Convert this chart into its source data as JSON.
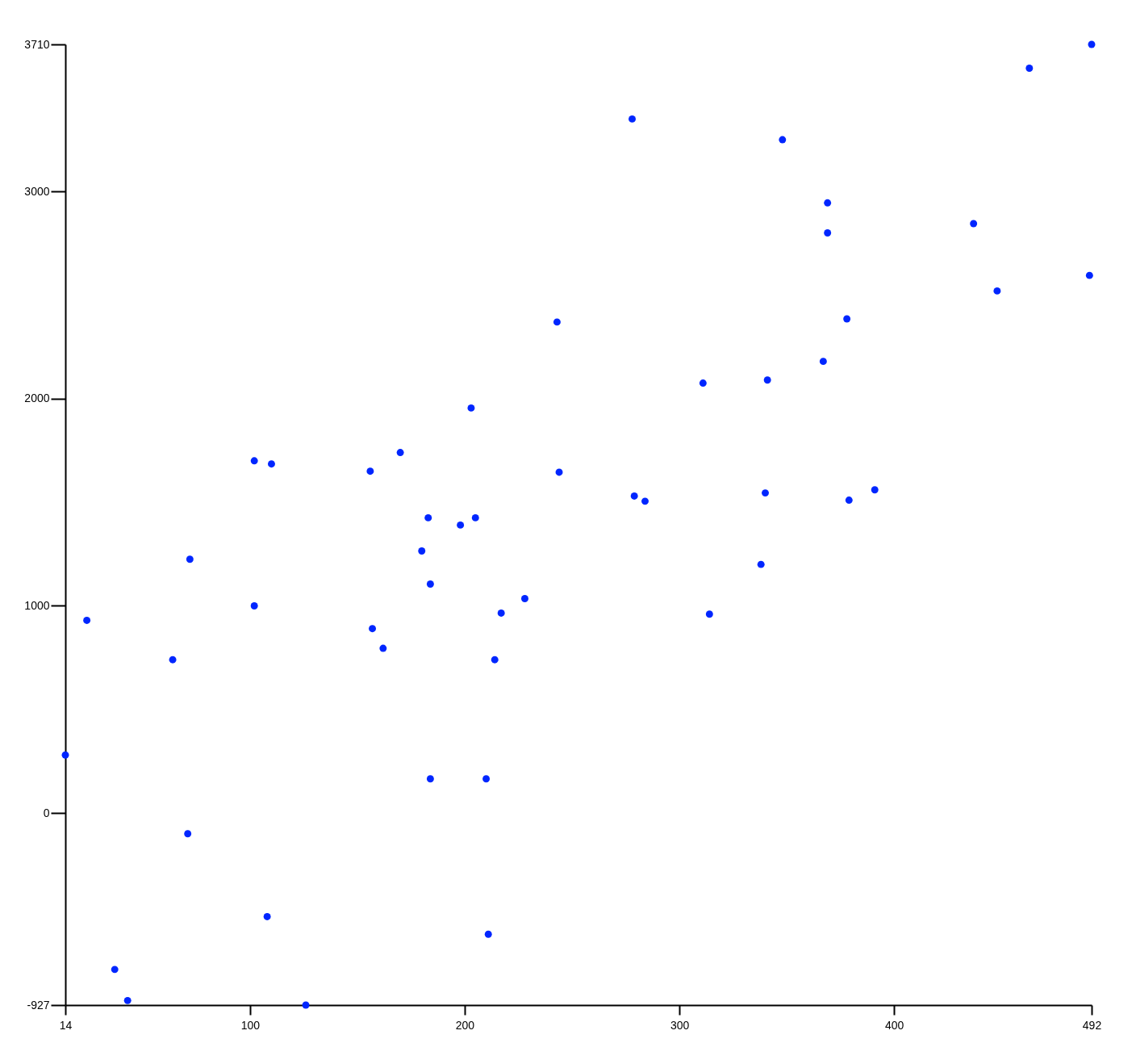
{
  "chart_data": {
    "type": "scatter",
    "x": [
      492,
      463,
      278,
      348,
      369,
      437,
      369,
      491,
      448,
      243,
      378,
      367,
      311,
      341,
      203,
      170,
      102,
      110,
      156,
      244,
      279,
      284,
      340,
      379,
      391,
      183,
      205,
      198,
      180,
      72,
      338,
      184,
      228,
      102,
      24,
      217,
      314,
      157,
      162,
      64,
      214,
      14,
      184,
      210,
      71,
      108,
      211,
      37,
      43,
      126
    ],
    "series": [
      {
        "color": "#0026ff",
        "values": [
          3710,
          3595,
          3350,
          3250,
          2945,
          2845,
          2800,
          2595,
          2520,
          2370,
          2385,
          2180,
          2075,
          2090,
          1955,
          1740,
          1700,
          1685,
          1650,
          1645,
          1530,
          1505,
          1545,
          1510,
          1560,
          1425,
          1425,
          1390,
          1265,
          1225,
          1200,
          1105,
          1035,
          1000,
          930,
          965,
          960,
          890,
          795,
          740,
          740,
          280,
          165,
          165,
          -100,
          -500,
          -585,
          -755,
          -905,
          -927
        ]
      }
    ],
    "xlim": [
      14,
      492
    ],
    "ylim": [
      -927,
      3710
    ],
    "xticks": [
      14,
      100,
      200,
      300,
      400,
      492
    ],
    "yticks": [
      -927,
      0,
      1000,
      2000,
      3000,
      3710
    ],
    "grid": false,
    "marker": "circle"
  }
}
